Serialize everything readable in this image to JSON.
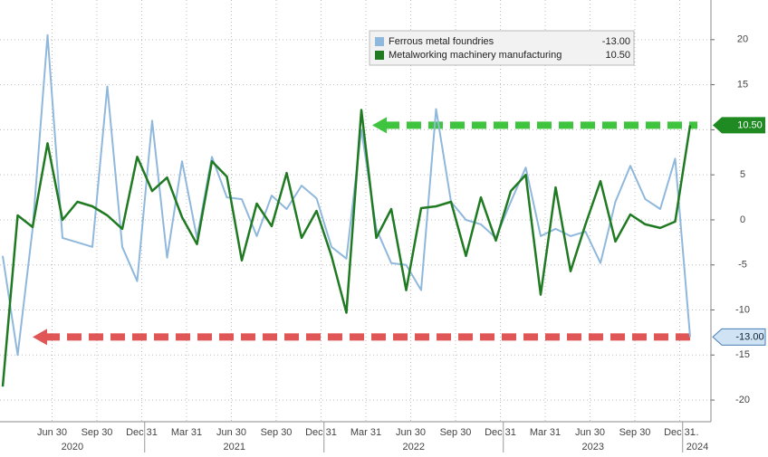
{
  "chart_data": {
    "type": "line",
    "categories": [
      null,
      null,
      null,
      "Jun 30",
      null,
      null,
      "Sep 30",
      null,
      null,
      "Dec 31",
      null,
      null,
      "Mar 31",
      null,
      null,
      "Jun 30",
      null,
      null,
      "Sep 30",
      null,
      null,
      "Dec 31",
      null,
      null,
      "Mar 31",
      null,
      null,
      "Jun 30",
      null,
      null,
      "Sep 30",
      null,
      null,
      "Dec 31",
      null,
      null,
      "Mar 31",
      null,
      null,
      "Jun 30",
      null,
      null,
      "Sep 30",
      null,
      null,
      "Dec 31",
      "..."
    ],
    "years": [
      "2020",
      "2021",
      "2022",
      "2023",
      "2024"
    ],
    "series": [
      {
        "name": "Ferrous metal foundries",
        "color": "#8fb8dc",
        "value_label": "-13.00",
        "values": [
          -4,
          -15,
          -1,
          20.5,
          -2,
          -2.5,
          -3,
          14.8,
          -3,
          -6.8,
          11,
          -4.2,
          6.5,
          -2,
          7,
          2.5,
          2.3,
          -1.8,
          2.7,
          1.2,
          3.8,
          2.4,
          -3,
          -4.3,
          10,
          -1,
          -4.8,
          -5,
          -7.8,
          12.3,
          2,
          0,
          -0.5,
          -2,
          2,
          5.8,
          -1.8,
          -1,
          -1.8,
          -1.3,
          -4.8,
          2,
          6,
          2.3,
          1.2,
          6.8,
          -13
        ]
      },
      {
        "name": "Metalworking machinery manufacturing",
        "color": "#1f7a22",
        "value_label": "10.50",
        "values": [
          -18.5,
          0.5,
          -0.8,
          8.5,
          0,
          2,
          1.5,
          0.5,
          -1,
          7,
          3.2,
          4.7,
          0.3,
          -2.7,
          6.5,
          4.8,
          -4.5,
          1.8,
          -0.7,
          5.2,
          -2,
          1,
          -4,
          -10.3,
          12.2,
          -2,
          1.2,
          -7.8,
          1.3,
          1.5,
          2,
          -4,
          2.5,
          -2.3,
          3.2,
          5,
          -8.3,
          3.6,
          -5.7,
          -0.5,
          4.3,
          -2.4,
          0.6,
          -0.5,
          -0.9,
          -0.2,
          10.5
        ]
      }
    ],
    "ylim": [
      -22,
      24
    ],
    "yticks": [
      -20,
      -15,
      -10,
      -5,
      0,
      5,
      10,
      15,
      20
    ],
    "grid": true
  }
}
